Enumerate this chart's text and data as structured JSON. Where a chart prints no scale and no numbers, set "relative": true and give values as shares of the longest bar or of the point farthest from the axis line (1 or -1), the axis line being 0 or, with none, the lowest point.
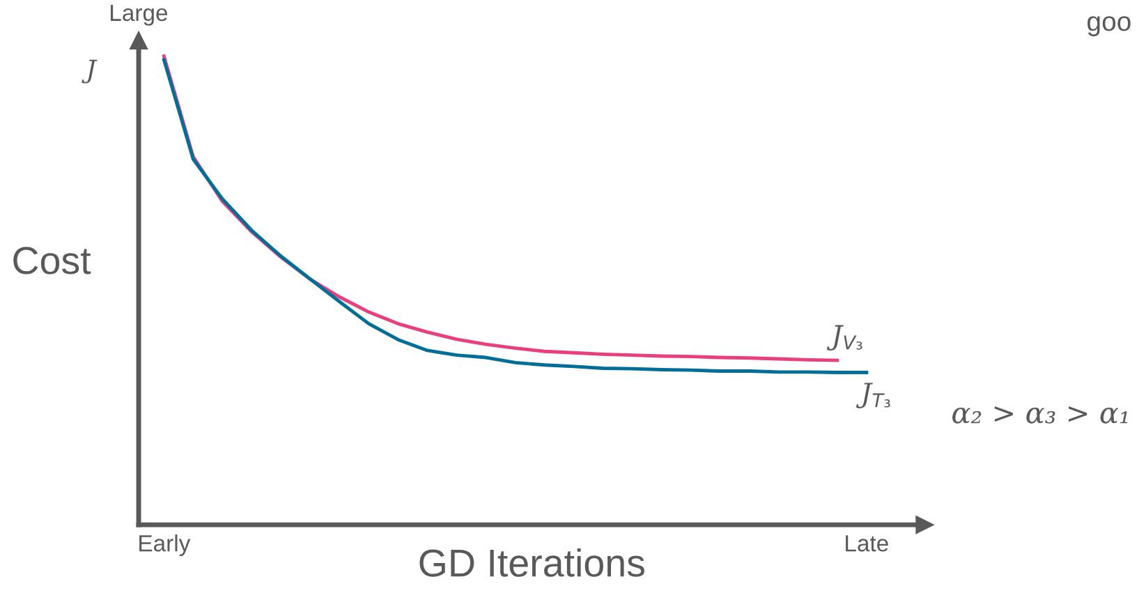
{
  "chart_data": {
    "type": "line",
    "relative": true,
    "xlabel": "GD Iterations",
    "ylabel": "Cost",
    "categories": [
      "Early",
      null,
      null,
      null,
      null,
      null,
      null,
      null,
      null,
      null,
      null,
      null,
      null,
      null,
      null,
      null,
      null,
      null,
      null,
      null,
      null,
      null,
      null,
      null,
      "Late"
    ],
    "annotations": [
      "Large",
      "J",
      "α₂ > α₃ > α₁",
      "goo"
    ],
    "grid": false,
    "legend": false,
    "marker": "none",
    "line_style": "solid",
    "series": [
      {
        "name": "J$_{V₃}$",
        "color": "#e8407f",
        "values": [
          1.0,
          0.785,
          0.69,
          0.625,
          0.571,
          0.524,
          0.486,
          0.454,
          0.429,
          0.411,
          0.396,
          0.385,
          0.377,
          0.37,
          0.367,
          0.364,
          0.362,
          0.36,
          0.359,
          0.357,
          0.356,
          0.354,
          0.352,
          0.351,
          null
        ]
      },
      {
        "name": "J$_{T₃}$",
        "color": "#006e96",
        "values": [
          0.992,
          0.78,
          0.695,
          0.628,
          0.573,
          0.524,
          0.476,
          0.429,
          0.395,
          0.372,
          0.362,
          0.357,
          0.346,
          0.341,
          0.338,
          0.334,
          0.333,
          0.331,
          0.33,
          0.328,
          0.328,
          0.326,
          0.326,
          0.325,
          0.325
        ]
      }
    ]
  }
}
